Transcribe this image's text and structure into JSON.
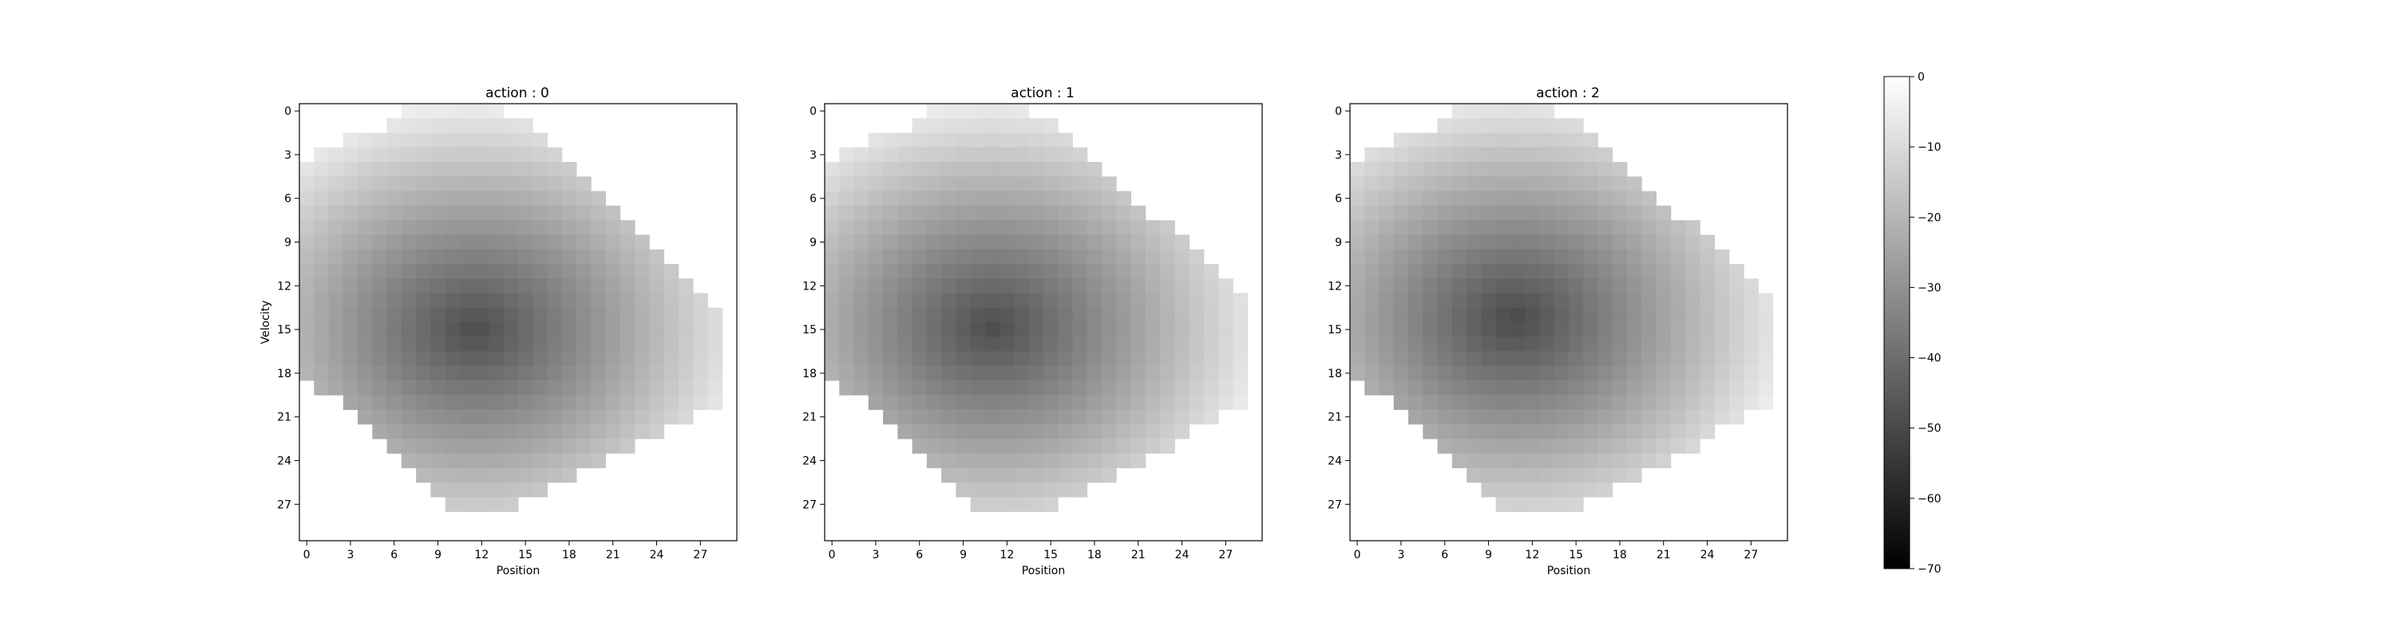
{
  "chart_data": {
    "type": "heatmap",
    "colormap": "gray",
    "vmin": -70,
    "vmax": 0,
    "grid": false,
    "colorbar": {
      "ticks": [
        0,
        -10,
        -20,
        -30,
        -40,
        -50,
        -60,
        -70
      ],
      "tick_labels": [
        "0",
        "−10",
        "−20",
        "−30",
        "−40",
        "−50",
        "−60",
        "−70"
      ]
    },
    "xlabel": "Position",
    "ylabel": "Velocity",
    "grid_size": 30,
    "tick_values": [
      0,
      3,
      6,
      9,
      12,
      15,
      18,
      21,
      24,
      27
    ],
    "tick_labels": [
      "0",
      "3",
      "6",
      "9",
      "12",
      "15",
      "18",
      "21",
      "24",
      "27"
    ],
    "panels": [
      {
        "title": "action : 0",
        "center": [
          11.5,
          15.0
        ],
        "min_value": -49,
        "support_shift": 0.0
      },
      {
        "title": "action : 1",
        "center": [
          11.0,
          14.8
        ],
        "min_value": -49,
        "support_shift": 0.7
      },
      {
        "title": "action : 2",
        "center": [
          10.8,
          14.3
        ],
        "min_value": -50,
        "support_shift": 0.7
      }
    ]
  }
}
